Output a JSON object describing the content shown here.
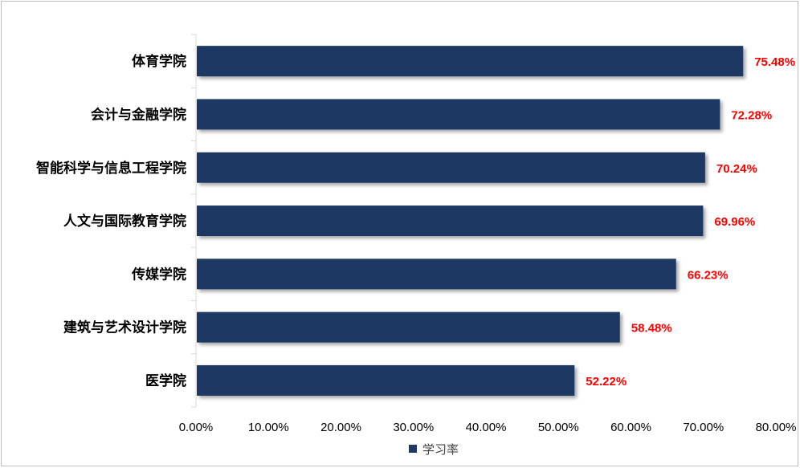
{
  "chart_data": {
    "type": "bar",
    "orientation": "horizontal",
    "categories": [
      "体育学院",
      "会计与金融学院",
      "智能科学与信息工程学院",
      "人文与国际教育学院",
      "传媒学院",
      "建筑与艺术设计学院",
      "医学院"
    ],
    "series": [
      {
        "name": "学习率",
        "values": [
          75.48,
          72.28,
          70.24,
          69.96,
          66.23,
          58.48,
          52.22
        ],
        "labels": [
          "75.48%",
          "72.28%",
          "70.24%",
          "69.96%",
          "66.23%",
          "58.48%",
          "52.22%"
        ]
      }
    ],
    "xlim": [
      0,
      80
    ],
    "x_ticks": [
      "0.00%",
      "10.00%",
      "20.00%",
      "30.00%",
      "40.00%",
      "50.00%",
      "60.00%",
      "70.00%",
      "80.00%"
    ],
    "grid": false,
    "legend": "bottom-center",
    "title": "",
    "xlabel": "",
    "ylabel": "",
    "colors": {
      "bar": "#1f3864",
      "data_label": "#ff0000",
      "axis": "#d9d9d9",
      "legend_text": "#404040"
    }
  }
}
